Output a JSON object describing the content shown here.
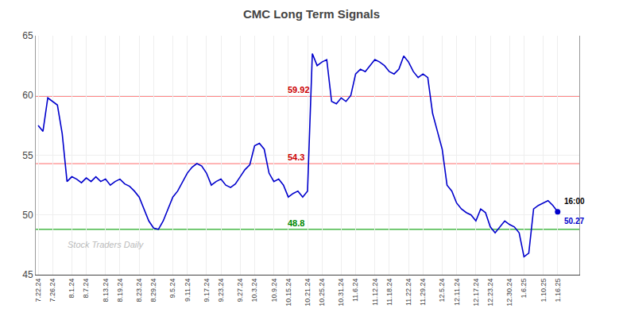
{
  "chart_data": {
    "type": "line",
    "title": "CMC Long Term Signals",
    "color": "#0000cc",
    "categories": [
      "7.22.24",
      null,
      null,
      "7.26.24",
      null,
      null,
      null,
      "8.1.24",
      null,
      null,
      "8.7.24",
      null,
      null,
      null,
      "8.13.24",
      null,
      null,
      "8.19.24",
      null,
      null,
      null,
      "8.23.24",
      null,
      null,
      "8.29.24",
      null,
      null,
      null,
      "9.5.24",
      null,
      null,
      "9.11.24",
      null,
      null,
      null,
      "9.17.24",
      null,
      null,
      "9.23.24",
      null,
      null,
      null,
      "9.27.24",
      null,
      null,
      "10.3.24",
      null,
      null,
      null,
      "10.9.24",
      null,
      null,
      "10.15.24",
      null,
      null,
      null,
      "10.21.24",
      null,
      null,
      "10.25.24",
      null,
      null,
      null,
      "10.31.24",
      null,
      null,
      "11.6.24",
      null,
      null,
      null,
      "11.12.24",
      null,
      null,
      "11.18.24",
      null,
      null,
      null,
      "11.22.24",
      null,
      null,
      "11.29.24",
      null,
      null,
      null,
      "12.5.24",
      null,
      null,
      "12.11.24",
      null,
      null,
      null,
      "12.17.24",
      null,
      null,
      "12.23.24",
      null,
      null,
      null,
      "12.30.24",
      null,
      null,
      "1.6.25",
      null,
      null,
      null,
      "1.10.25",
      null,
      null,
      "1.16.25"
    ],
    "values": [
      57.5,
      57.0,
      59.8,
      59.5,
      59.2,
      56.8,
      52.8,
      53.2,
      53.0,
      52.7,
      53.1,
      52.8,
      53.2,
      52.8,
      53.0,
      52.5,
      52.8,
      53.0,
      52.6,
      52.4,
      52.0,
      51.5,
      50.5,
      49.5,
      48.9,
      48.8,
      49.5,
      50.5,
      51.5,
      52.0,
      52.8,
      53.5,
      54.0,
      54.3,
      54.1,
      53.5,
      52.5,
      52.8,
      53.0,
      52.5,
      52.3,
      52.6,
      53.2,
      53.8,
      54.2,
      55.8,
      56.0,
      55.5,
      53.5,
      52.8,
      53.0,
      52.5,
      51.5,
      51.8,
      52.0,
      51.5,
      52.0,
      63.5,
      62.5,
      62.8,
      63.0,
      59.5,
      59.3,
      59.8,
      59.5,
      60.0,
      61.8,
      62.2,
      62.0,
      62.5,
      63.0,
      62.8,
      62.5,
      62.0,
      61.8,
      62.2,
      63.3,
      62.8,
      62.0,
      61.5,
      61.8,
      61.5,
      58.5,
      57.0,
      55.5,
      52.5,
      52.0,
      51.0,
      50.5,
      50.2,
      50.0,
      49.5,
      50.5,
      50.2,
      49.0,
      48.5,
      49.0,
      49.5,
      49.2,
      49.0,
      48.5,
      46.5,
      46.8,
      50.5,
      50.8,
      51.0,
      51.2,
      50.8,
      50.27
    ],
    "ylim": [
      45,
      65
    ],
    "yticks": [
      45,
      50,
      55,
      60,
      65
    ],
    "grid": true,
    "reference_lines": [
      {
        "value": 59.92,
        "color": "#ff8888",
        "label": "59.92",
        "label_color": "#cc0000"
      },
      {
        "value": 54.3,
        "color": "#ff8888",
        "label": "54.3",
        "label_color": "#cc0000"
      },
      {
        "value": 48.8,
        "color": "#22aa22",
        "label": "48.8",
        "label_color": "#008800"
      }
    ],
    "end_labels": [
      {
        "text": "16:00",
        "color": "#000000"
      },
      {
        "text": "50.27",
        "color": "#0000cc"
      }
    ],
    "watermark": "Stock Traders Daily"
  }
}
